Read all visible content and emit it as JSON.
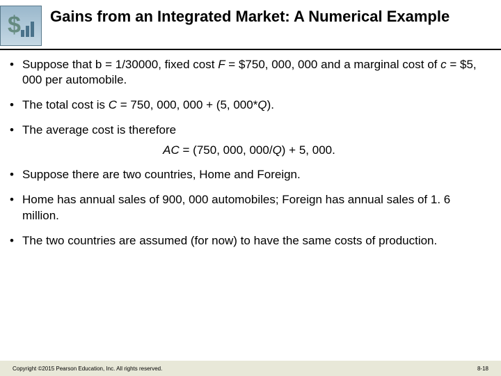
{
  "title": "Gains from an Integrated Market: A Numerical Example",
  "bullets": [
    {
      "html": "Suppose that b = 1/30000, fixed cost <span class='italic'>F</span> = $750, 000, 000 and a marginal cost of <span class='italic'>c</span> = $5, 000 per automobile."
    },
    {
      "html": "The total cost is <span class='italic'>C</span> = 750, 000, 000 + (5, 000*<span class='italic'>Q</span>)."
    },
    {
      "html": "The average cost is therefore"
    }
  ],
  "formula": "<span class='italic'>AC</span> <span class='upright'>= (750, 000, 000/</span><span class='italic'>Q</span><span class='upright'>) + 5, 000.</span>",
  "bullets2": [
    {
      "html": "Suppose there are two countries, Home and Foreign."
    },
    {
      "html": "Home has annual sales of 900, 000 automobiles; Foreign has annual sales of 1. 6 million."
    },
    {
      "html": "The two countries are assumed (for now) to have the same costs of production."
    }
  ],
  "footer": {
    "copyright": "Copyright ©2015 Pearson Education, Inc. All rights reserved.",
    "pagenum": "8-18"
  },
  "colors": {
    "underline": "#000000",
    "footer_bg": "#e8e8d8",
    "logo_grad_top": "#9ab8cc",
    "logo_grad_bottom": "#c5d8e4"
  }
}
